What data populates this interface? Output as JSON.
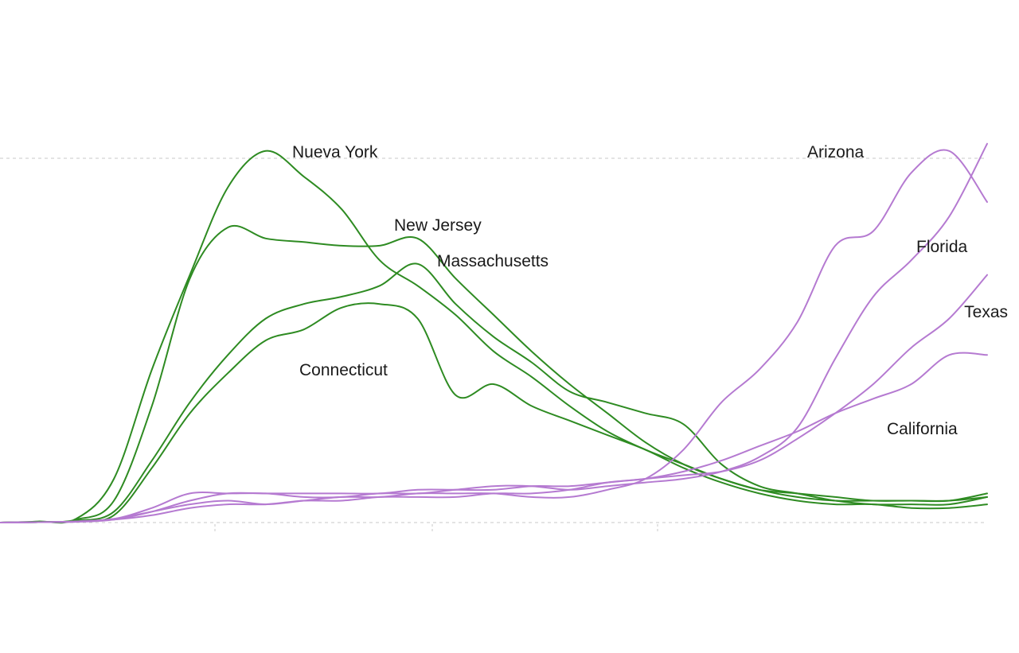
{
  "chart_data": {
    "type": "line",
    "title": "",
    "xlabel": "",
    "ylabel": "",
    "x": [
      0,
      10,
      20,
      30,
      40,
      50,
      60,
      70,
      80,
      90,
      100,
      110,
      120,
      130,
      140,
      150,
      160,
      170,
      180,
      190,
      200,
      210,
      220,
      230,
      240,
      250,
      260
    ],
    "xlim": [
      0,
      260
    ],
    "ylim": [
      0,
      100
    ],
    "gridlines_y": [
      0,
      100
    ],
    "colors": {
      "northeast": "#2e8b22",
      "sunbelt": "#b57ad1",
      "grid": "#c8c8c8",
      "label": "#1a1a1a"
    },
    "series": [
      {
        "name": "Nueva York",
        "group": "northeast",
        "label": "Nueva York",
        "values": [
          0,
          0.3,
          1,
          12,
          42,
          68,
          92,
          102,
          95,
          86,
          72,
          65,
          57,
          47,
          40,
          32,
          25,
          20,
          16,
          12,
          9,
          8,
          7,
          6,
          6,
          6,
          7
        ]
      },
      {
        "name": "New Jersey",
        "group": "northeast",
        "label": "New Jersey",
        "values": [
          0,
          0.2,
          0.8,
          6,
          32,
          67,
          81,
          78,
          77,
          76,
          76,
          78,
          67,
          57,
          47,
          38,
          30,
          22,
          16,
          12,
          9,
          7,
          6,
          6,
          6,
          6,
          8
        ]
      },
      {
        "name": "Massachusetts",
        "group": "northeast",
        "label": "Massachusetts",
        "values": [
          0,
          0.1,
          0.5,
          3,
          17,
          33,
          46,
          56,
          60,
          62,
          65,
          71,
          60,
          51,
          44,
          36,
          33,
          30,
          27,
          16,
          10,
          8,
          6,
          5,
          5,
          5,
          7
        ]
      },
      {
        "name": "Connecticut",
        "group": "northeast",
        "label": "Connecticut",
        "values": [
          0,
          0.1,
          0.4,
          2,
          15,
          30,
          41,
          50,
          53,
          59,
          60,
          56,
          35,
          38,
          32,
          28,
          24,
          20,
          15,
          11,
          8,
          6,
          5,
          5,
          4,
          4,
          5
        ]
      },
      {
        "name": "Arizona",
        "group": "sunbelt",
        "label": "Arizona",
        "values": [
          0,
          0.1,
          0.3,
          1,
          3,
          5,
          6,
          5,
          6,
          7,
          7,
          8,
          8,
          8,
          7,
          7,
          9,
          12,
          20,
          33,
          42,
          55,
          76,
          80,
          96,
          102,
          88
        ]
      },
      {
        "name": "Florida",
        "group": "sunbelt",
        "label": "Florida",
        "values": [
          0,
          0.1,
          0.3,
          1,
          4,
          8,
          8,
          8,
          7,
          7,
          8,
          8,
          9,
          10,
          10,
          9,
          10,
          11,
          12,
          14,
          18,
          26,
          45,
          62,
          72,
          84,
          104
        ]
      },
      {
        "name": "Texas",
        "group": "sunbelt",
        "label": "Texas",
        "values": [
          0,
          0.1,
          0.2,
          0.8,
          3,
          6,
          8,
          8,
          8,
          8,
          8,
          9,
          9,
          9,
          10,
          10,
          11,
          12,
          13,
          14,
          17,
          23,
          30,
          38,
          48,
          56,
          68
        ]
      },
      {
        "name": "California",
        "group": "sunbelt",
        "label": "California",
        "values": [
          0,
          0.1,
          0.3,
          0.8,
          2,
          4,
          5,
          5,
          6,
          6,
          7,
          7,
          7,
          8,
          8,
          9,
          11,
          12,
          14,
          17,
          21,
          25,
          30,
          34,
          38,
          46,
          46
        ]
      }
    ]
  }
}
